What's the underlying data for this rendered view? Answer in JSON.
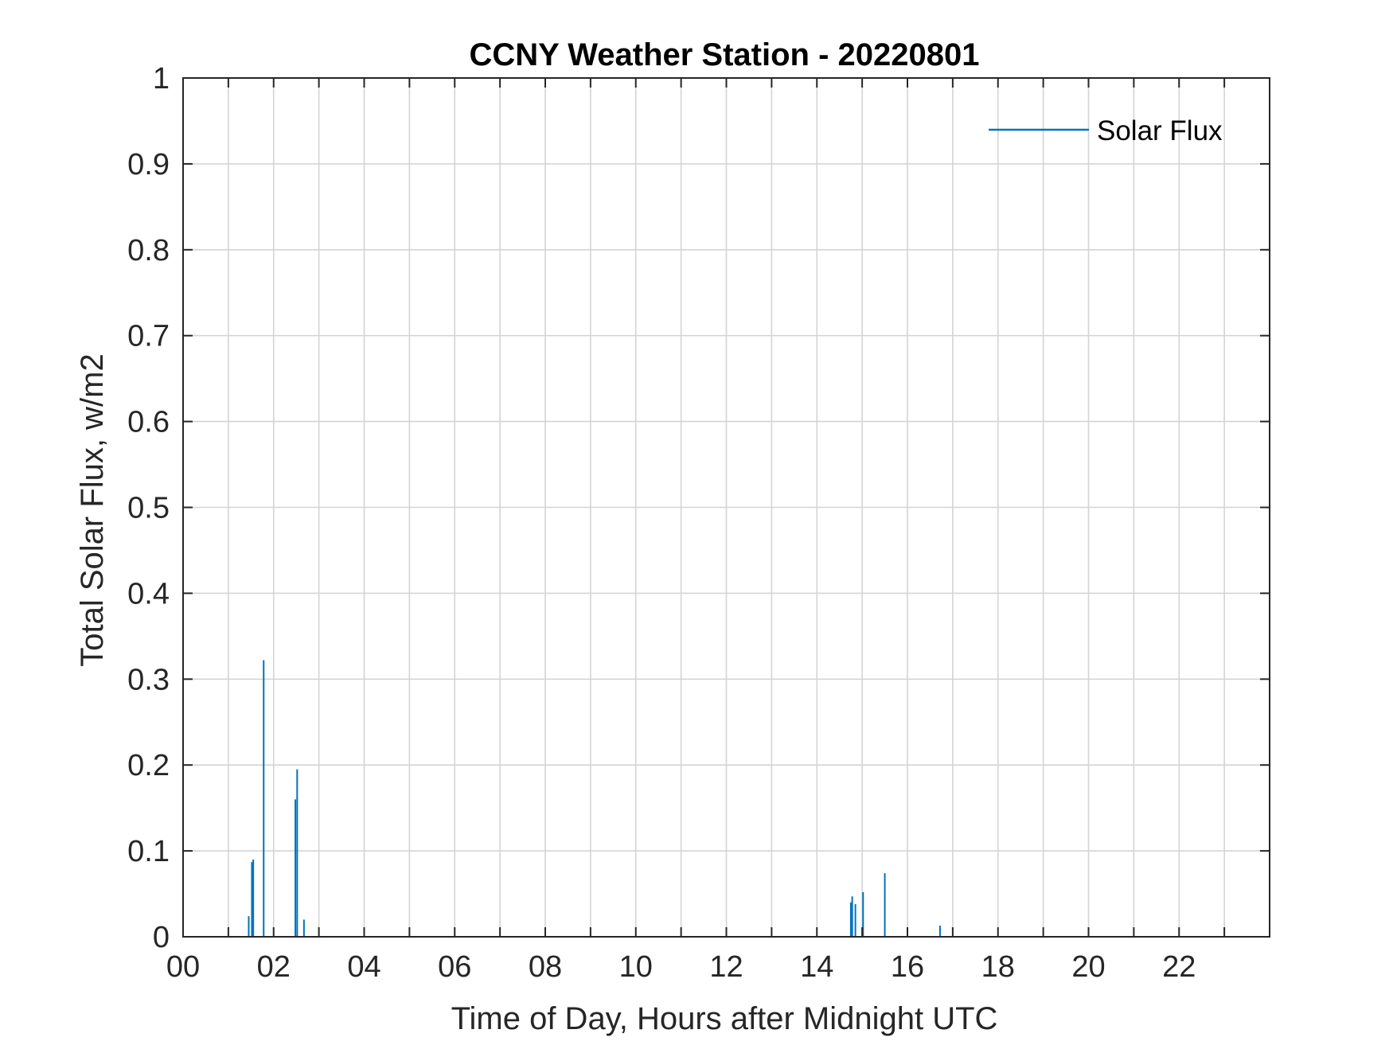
{
  "chart_data": {
    "type": "line",
    "title": "CCNY Weather Station - 20220801",
    "xlabel": "Time of Day, Hours after Midnight UTC",
    "ylabel": "Total Solar Flux, w/m2",
    "xlim": [
      0,
      24
    ],
    "ylim": [
      0,
      1
    ],
    "x_ticks": [
      0,
      2,
      4,
      6,
      8,
      10,
      12,
      14,
      16,
      18,
      20,
      22
    ],
    "x_tick_labels": [
      "00",
      "02",
      "04",
      "06",
      "08",
      "10",
      "12",
      "14",
      "16",
      "18",
      "20",
      "22"
    ],
    "x_minor_grid_step": 1,
    "y_ticks": [
      0,
      0.1,
      0.2,
      0.3,
      0.4,
      0.5,
      0.6,
      0.7,
      0.8,
      0.9,
      1
    ],
    "y_tick_labels": [
      "0",
      "0.1",
      "0.2",
      "0.3",
      "0.4",
      "0.5",
      "0.6",
      "0.7",
      "0.8",
      "0.9",
      "1"
    ],
    "grid": true,
    "legend": {
      "position": "top-right",
      "entries": [
        "Solar Flux"
      ]
    },
    "series": [
      {
        "name": "Solar Flux",
        "color": "#0072BD",
        "spikes": [
          {
            "x": 1.45,
            "y": 0.024
          },
          {
            "x": 1.52,
            "y": 0.087
          },
          {
            "x": 1.55,
            "y": 0.09
          },
          {
            "x": 1.78,
            "y": 0.322
          },
          {
            "x": 2.48,
            "y": 0.16
          },
          {
            "x": 2.52,
            "y": 0.195
          },
          {
            "x": 2.67,
            "y": 0.02
          },
          {
            "x": 14.75,
            "y": 0.04
          },
          {
            "x": 14.78,
            "y": 0.047
          },
          {
            "x": 14.85,
            "y": 0.038
          },
          {
            "x": 15.02,
            "y": 0.052
          },
          {
            "x": 15.5,
            "y": 0.074
          },
          {
            "x": 16.72,
            "y": 0.013
          }
        ]
      }
    ]
  }
}
